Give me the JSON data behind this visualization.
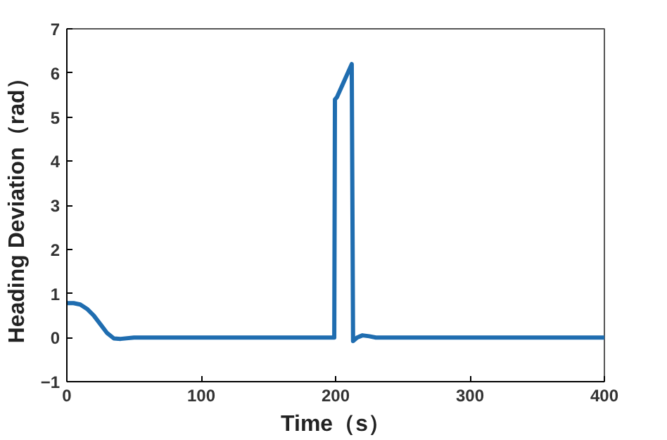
{
  "chart_data": {
    "type": "line",
    "xlabel": "Time（s）",
    "ylabel": "Heading Deviation（rad）",
    "x": [
      0,
      5,
      10,
      15,
      20,
      25,
      30,
      35,
      40,
      50,
      100,
      150,
      199,
      199.5,
      201,
      212,
      213,
      216,
      220,
      225,
      230,
      300,
      400
    ],
    "series": [
      {
        "color": "#1f6db0",
        "values": [
          0.78,
          0.78,
          0.75,
          0.65,
          0.5,
          0.3,
          0.1,
          -0.02,
          -0.03,
          0,
          0,
          0,
          0,
          5.4,
          5.45,
          6.2,
          -0.08,
          0,
          0.05,
          0.03,
          0,
          0,
          0
        ]
      }
    ],
    "xlim": [
      0,
      400
    ],
    "ylim": [
      -1,
      7
    ],
    "xticks": [
      0,
      100,
      200,
      300,
      400
    ],
    "yticks": [
      -1,
      0,
      1,
      2,
      3,
      4,
      5,
      6,
      7
    ],
    "grid": false
  }
}
